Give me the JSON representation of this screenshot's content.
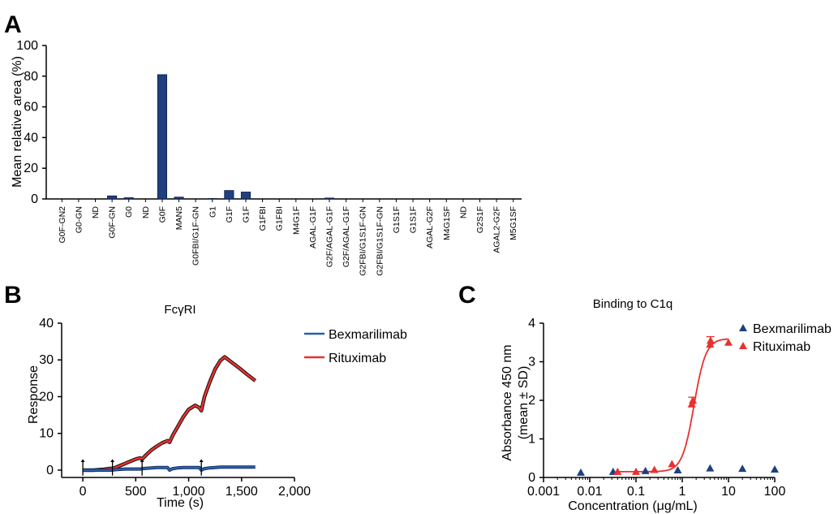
{
  "panels": {
    "a": "A",
    "b": "B",
    "c": "C"
  },
  "chart_data": [
    {
      "type": "bar",
      "ylabel": "Mean relative area (%)",
      "xlabel": "",
      "ylim": [
        0,
        100
      ],
      "yticks": [
        "0",
        "20",
        "40",
        "60",
        "80",
        "100"
      ],
      "color": "#1f3f7f",
      "categories": [
        "G0F-GN2",
        "G0-GN",
        "ND",
        "G0F-GN",
        "G0",
        "ND",
        "G0F",
        "MAN5",
        "G0FBI/G1F-GN",
        "G1",
        "G1F",
        "G1F",
        "G1FBI",
        "G1FBI",
        "M4G1F",
        "AGAL-G1F",
        "G2F/AGAL-G1F",
        "G2F/AGAL-G1F",
        "G2FBI/G1S1F-GN",
        "G2FBI/G1S1F-GN",
        "G1S1F",
        "G1S1F",
        "AGAL-G2F",
        "M4G1SF",
        "ND",
        "G2S1F",
        "AGAL2-G2F",
        "M5G1SF"
      ],
      "values": [
        0,
        0,
        0,
        2.0,
        0.8,
        0,
        81,
        1.2,
        0,
        0.3,
        5.5,
        4.5,
        0,
        0,
        0,
        0,
        0.6,
        0,
        0,
        0,
        0,
        0,
        0,
        0,
        0,
        0,
        0,
        0
      ]
    },
    {
      "type": "line",
      "title": "FcγRI",
      "xlabel": "Time (s)",
      "ylabel": "Response",
      "xlim": [
        -200,
        2000
      ],
      "ylim": [
        -2,
        40
      ],
      "xticks": [
        "0",
        "500",
        "1,000",
        "1,500",
        "2,000"
      ],
      "yticks": [
        "0",
        "10",
        "20",
        "30",
        "40"
      ],
      "legend_position": "right",
      "series": [
        {
          "name": "Bexmarilimab",
          "color": "#2b5ea7",
          "x": [
            0,
            50,
            100,
            150,
            200,
            250,
            280,
            300,
            350,
            400,
            450,
            500,
            550,
            560,
            600,
            650,
            700,
            750,
            800,
            820,
            850,
            900,
            950,
            1000,
            1050,
            1100,
            1120,
            1150,
            1200,
            1250,
            1300,
            1350,
            1400,
            1450,
            1500,
            1550,
            1600,
            1630
          ],
          "y": [
            0,
            0,
            0,
            0,
            0,
            0,
            0,
            0.1,
            0.2,
            0.3,
            0.3,
            0.3,
            0.3,
            0.4,
            0.5,
            0.6,
            0.7,
            0.7,
            0.7,
            0,
            0.4,
            0.6,
            0.7,
            0.7,
            0.7,
            0.7,
            0,
            0.4,
            0.6,
            0.7,
            0.8,
            0.8,
            0.8,
            0.8,
            0.8,
            0.8,
            0.8,
            0.8
          ]
        },
        {
          "name": "Rituximab",
          "color": "#e8312f",
          "x": [
            0,
            50,
            100,
            150,
            200,
            250,
            280,
            300,
            350,
            400,
            450,
            500,
            540,
            560,
            600,
            650,
            700,
            750,
            800,
            820,
            850,
            900,
            950,
            1000,
            1060,
            1100,
            1120,
            1150,
            1200,
            1250,
            1300,
            1340,
            1400,
            1450,
            1500,
            1550,
            1600,
            1630
          ],
          "y": [
            0,
            0,
            0,
            0.1,
            0.2,
            0.4,
            0.5,
            0.6,
            1.2,
            1.8,
            2.4,
            3.0,
            3.3,
            3.0,
            4.2,
            5.5,
            6.5,
            7.4,
            8.0,
            7.6,
            9.5,
            12.0,
            14.5,
            16.5,
            17.6,
            17.0,
            16.2,
            20.0,
            24.0,
            27.5,
            29.8,
            30.8,
            29.5,
            28.4,
            27.3,
            26.1,
            25.0,
            24.3
          ]
        }
      ]
    },
    {
      "type": "scatter",
      "title": "Binding to C1q",
      "xlabel": "Concentration (μg/mL)",
      "ylabel": [
        "Absorbance 450 nm",
        "(mean ± SD)"
      ],
      "xscale": "log",
      "xlim": [
        0.001,
        100
      ],
      "ylim": [
        0,
        4
      ],
      "xticks": [
        "0.001",
        "0.01",
        "0.1",
        "1",
        "10",
        "100"
      ],
      "yticks": [
        "0",
        "1",
        "2",
        "3",
        "4"
      ],
      "legend_position": "top-right",
      "series": [
        {
          "name": "Bexmarilimab",
          "color": "#1f3f7f",
          "x": [
            0.0064,
            0.032,
            0.16,
            0.8,
            4,
            20,
            100
          ],
          "y": [
            0.13,
            0.15,
            0.17,
            0.19,
            0.24,
            0.23,
            0.21
          ]
        },
        {
          "name": "Rituximab",
          "color": "#e8312f",
          "x": [
            0.04,
            0.1,
            0.25,
            0.6,
            1.6,
            1.7,
            4,
            4.1,
            10
          ],
          "y": [
            0.15,
            0.15,
            0.2,
            0.35,
            1.9,
            2.0,
            3.45,
            3.55,
            3.5
          ]
        }
      ],
      "fit": {
        "series": "Rituximab",
        "bottom": 0.15,
        "top": 3.6,
        "ec50": 1.8,
        "hill": 3.4,
        "x_range": [
          0.04,
          10
        ]
      }
    }
  ]
}
